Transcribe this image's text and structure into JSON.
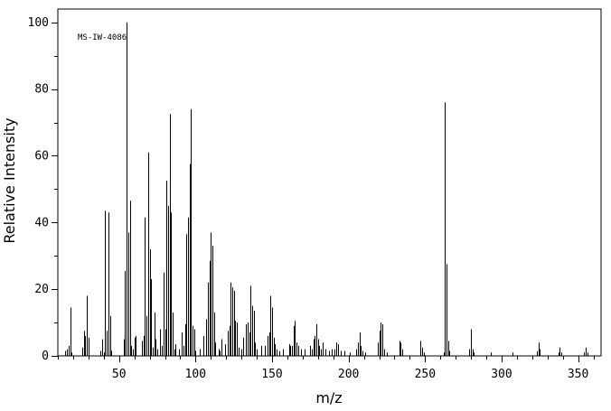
{
  "chart_data": {
    "type": "bar",
    "title": "",
    "annotation": "MS-IW-4086",
    "xlabel": "m/z",
    "ylabel": "Relative Intensity",
    "xlim": [
      10,
      365
    ],
    "ylim": [
      0,
      104
    ],
    "x_ticks": [
      50,
      100,
      150,
      200,
      250,
      300,
      350
    ],
    "y_ticks": [
      0,
      20,
      40,
      60,
      80,
      100
    ],
    "grid": false,
    "peaks": [
      [
        15,
        1.5
      ],
      [
        16,
        2
      ],
      [
        17,
        3
      ],
      [
        18,
        14.5
      ],
      [
        19,
        1
      ],
      [
        26,
        2.5
      ],
      [
        27,
        7.5
      ],
      [
        28,
        6
      ],
      [
        29,
        18
      ],
      [
        30,
        5.5
      ],
      [
        38,
        1.5
      ],
      [
        39,
        5
      ],
      [
        40,
        1
      ],
      [
        41,
        43.5
      ],
      [
        42,
        7.5
      ],
      [
        43,
        43
      ],
      [
        44,
        12
      ],
      [
        45,
        1.5
      ],
      [
        53,
        5
      ],
      [
        54,
        25.5
      ],
      [
        55,
        100
      ],
      [
        56,
        37
      ],
      [
        57,
        46.5
      ],
      [
        58,
        3
      ],
      [
        59,
        2
      ],
      [
        60,
        5.5
      ],
      [
        61,
        6
      ],
      [
        65,
        4.5
      ],
      [
        66,
        6
      ],
      [
        67,
        41.5
      ],
      [
        68,
        12
      ],
      [
        69,
        61
      ],
      [
        70,
        32
      ],
      [
        71,
        23
      ],
      [
        72,
        2.5
      ],
      [
        73,
        13
      ],
      [
        74,
        5
      ],
      [
        75,
        2
      ],
      [
        77,
        8
      ],
      [
        78,
        3
      ],
      [
        79,
        25
      ],
      [
        80,
        8
      ],
      [
        81,
        52.5
      ],
      [
        82,
        45
      ],
      [
        83,
        72.5
      ],
      [
        84,
        43
      ],
      [
        85,
        13
      ],
      [
        86,
        2
      ],
      [
        87,
        3.5
      ],
      [
        89,
        2
      ],
      [
        91,
        7
      ],
      [
        92,
        3
      ],
      [
        93,
        9.5
      ],
      [
        94,
        36.5
      ],
      [
        95,
        41.5
      ],
      [
        96,
        57.5
      ],
      [
        97,
        74
      ],
      [
        98,
        9
      ],
      [
        99,
        8
      ],
      [
        100,
        1.5
      ],
      [
        103,
        2
      ],
      [
        105,
        6
      ],
      [
        107,
        11
      ],
      [
        108,
        22
      ],
      [
        109,
        28.5
      ],
      [
        110,
        37
      ],
      [
        111,
        33
      ],
      [
        112,
        13
      ],
      [
        113,
        4
      ],
      [
        115,
        2
      ],
      [
        116,
        1.5
      ],
      [
        117,
        5
      ],
      [
        119,
        3.5
      ],
      [
        121,
        7.5
      ],
      [
        122,
        9
      ],
      [
        123,
        22
      ],
      [
        124,
        20.5
      ],
      [
        125,
        19.5
      ],
      [
        126,
        10.5
      ],
      [
        127,
        10
      ],
      [
        128,
        2.5
      ],
      [
        130,
        2
      ],
      [
        131,
        5.5
      ],
      [
        133,
        9.5
      ],
      [
        134,
        10
      ],
      [
        135,
        7
      ],
      [
        136,
        21
      ],
      [
        137,
        15
      ],
      [
        138,
        13.5
      ],
      [
        139,
        4
      ],
      [
        140,
        2
      ],
      [
        143,
        3
      ],
      [
        145,
        3
      ],
      [
        147,
        6
      ],
      [
        148,
        7
      ],
      [
        149,
        18
      ],
      [
        150,
        14.5
      ],
      [
        151,
        5.5
      ],
      [
        152,
        3.5
      ],
      [
        153,
        2
      ],
      [
        155,
        1.5
      ],
      [
        157,
        2
      ],
      [
        161,
        3.5
      ],
      [
        162,
        3
      ],
      [
        163,
        3
      ],
      [
        164,
        9
      ],
      [
        165,
        10.5
      ],
      [
        166,
        4
      ],
      [
        167,
        3
      ],
      [
        169,
        2
      ],
      [
        171,
        2
      ],
      [
        175,
        3
      ],
      [
        176,
        2
      ],
      [
        177,
        5
      ],
      [
        178,
        6
      ],
      [
        179,
        9.5
      ],
      [
        180,
        5
      ],
      [
        181,
        3
      ],
      [
        182,
        2
      ],
      [
        183,
        4
      ],
      [
        185,
        2
      ],
      [
        187,
        1.5
      ],
      [
        189,
        2
      ],
      [
        191,
        2
      ],
      [
        192,
        4
      ],
      [
        193,
        3.5
      ],
      [
        195,
        1.5
      ],
      [
        197,
        1.5
      ],
      [
        201,
        1
      ],
      [
        205,
        2
      ],
      [
        206,
        4
      ],
      [
        207,
        7
      ],
      [
        208,
        3
      ],
      [
        209,
        1.5
      ],
      [
        211,
        1
      ],
      [
        219,
        4
      ],
      [
        220,
        7.5
      ],
      [
        221,
        10
      ],
      [
        222,
        9.5
      ],
      [
        223,
        2
      ],
      [
        225,
        1
      ],
      [
        233,
        4.5
      ],
      [
        234,
        4
      ],
      [
        235,
        2
      ],
      [
        247,
        4.5
      ],
      [
        248,
        2.5
      ],
      [
        249,
        1
      ],
      [
        262,
        1
      ],
      [
        263,
        76
      ],
      [
        264,
        27.5
      ],
      [
        265,
        4.5
      ],
      [
        266,
        1.5
      ],
      [
        279,
        2
      ],
      [
        280,
        8
      ],
      [
        281,
        2
      ],
      [
        282,
        1
      ],
      [
        293,
        1
      ],
      [
        307,
        1
      ],
      [
        323,
        1.5
      ],
      [
        324,
        4
      ],
      [
        325,
        2
      ],
      [
        337,
        1
      ],
      [
        338,
        2.5
      ],
      [
        339,
        1
      ],
      [
        354,
        1
      ],
      [
        355,
        2.5
      ],
      [
        356,
        1
      ]
    ]
  }
}
